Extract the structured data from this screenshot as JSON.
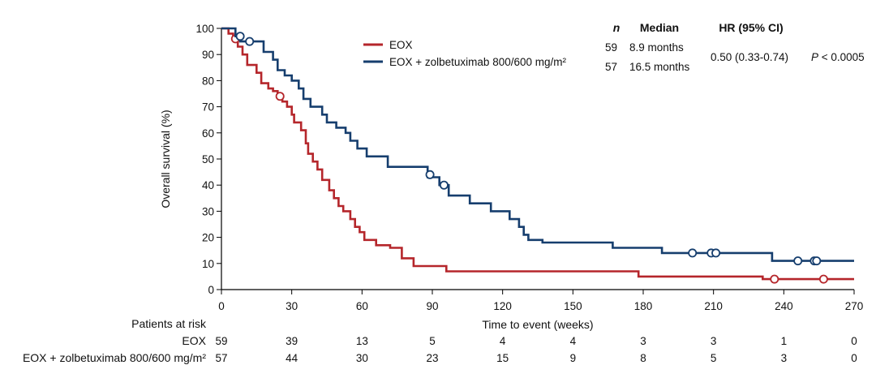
{
  "chart_data": {
    "type": "line",
    "ylabel": "Overall survival (%)",
    "xlabel": "Time to event (weeks)",
    "xlim": [
      0,
      270
    ],
    "ylim": [
      0,
      100
    ],
    "xticks": [
      0,
      30,
      60,
      90,
      120,
      150,
      180,
      210,
      240,
      270
    ],
    "yticks": [
      0,
      10,
      20,
      30,
      40,
      50,
      60,
      70,
      80,
      90,
      100
    ],
    "grid": false,
    "legend_position": "top-center",
    "series": [
      {
        "name": "EOX",
        "color": "#b5262b",
        "steps": [
          [
            0,
            100
          ],
          [
            3,
            98
          ],
          [
            5,
            96
          ],
          [
            7,
            93
          ],
          [
            9,
            90
          ],
          [
            11,
            86
          ],
          [
            15,
            83
          ],
          [
            17,
            79
          ],
          [
            20,
            77
          ],
          [
            22,
            76
          ],
          [
            24,
            74
          ],
          [
            26,
            72
          ],
          [
            28,
            70
          ],
          [
            30,
            67
          ],
          [
            31,
            64
          ],
          [
            34,
            61
          ],
          [
            36,
            56
          ],
          [
            37,
            52
          ],
          [
            39,
            49
          ],
          [
            41,
            46
          ],
          [
            43,
            42
          ],
          [
            46,
            38
          ],
          [
            48,
            35
          ],
          [
            50,
            32
          ],
          [
            52,
            30
          ],
          [
            55,
            27
          ],
          [
            57,
            24
          ],
          [
            59,
            22
          ],
          [
            61,
            19
          ],
          [
            66,
            17
          ],
          [
            72,
            16
          ],
          [
            77,
            12
          ],
          [
            82,
            9
          ],
          [
            96,
            7
          ],
          [
            178,
            5
          ],
          [
            231,
            4
          ],
          [
            270,
            4
          ]
        ],
        "censored": [
          [
            6,
            96
          ],
          [
            25,
            74
          ],
          [
            236,
            4
          ],
          [
            257,
            4
          ]
        ]
      },
      {
        "name": "EOX + zolbetuximab 800/600 mg/m²",
        "color": "#163e6e",
        "steps": [
          [
            0,
            100
          ],
          [
            6,
            97
          ],
          [
            8,
            95
          ],
          [
            18,
            91
          ],
          [
            22,
            88
          ],
          [
            24,
            84
          ],
          [
            27,
            82
          ],
          [
            30,
            80
          ],
          [
            33,
            77
          ],
          [
            35,
            73
          ],
          [
            38,
            70
          ],
          [
            43,
            67
          ],
          [
            45,
            64
          ],
          [
            49,
            62
          ],
          [
            53,
            60
          ],
          [
            55,
            57
          ],
          [
            58,
            54
          ],
          [
            62,
            51
          ],
          [
            64,
            51
          ],
          [
            71,
            47
          ],
          [
            84,
            47
          ],
          [
            88,
            43
          ],
          [
            93,
            40
          ],
          [
            97,
            36
          ],
          [
            106,
            33
          ],
          [
            115,
            30
          ],
          [
            123,
            27
          ],
          [
            127,
            24
          ],
          [
            129,
            21
          ],
          [
            131,
            19
          ],
          [
            137,
            18
          ],
          [
            167,
            16
          ],
          [
            188,
            14
          ],
          [
            235,
            11
          ],
          [
            270,
            11
          ]
        ],
        "censored": [
          [
            8,
            97
          ],
          [
            12,
            95
          ],
          [
            89,
            44
          ],
          [
            95,
            40
          ],
          [
            201,
            14
          ],
          [
            209,
            14
          ],
          [
            211,
            14
          ],
          [
            246,
            11
          ],
          [
            253,
            11
          ],
          [
            254,
            11
          ]
        ]
      }
    ],
    "stats_table": {
      "headers": [
        "n",
        "Median",
        "HR (95% CI)"
      ],
      "rows": [
        {
          "n": "59",
          "median": "8.9 months"
        },
        {
          "n": "57",
          "median": "16.5 months"
        }
      ],
      "hr": "0.50 (0.33-0.74)",
      "p_prefix": "P",
      "p_rest": " < 0.0005"
    },
    "risk_table": {
      "title": "Patients at risk",
      "rows": [
        {
          "label": "EOX",
          "values": [
            59,
            39,
            13,
            5,
            4,
            4,
            3,
            3,
            1,
            0
          ]
        },
        {
          "label": "EOX + zolbetuximab 800/600 mg/m²",
          "values": [
            57,
            44,
            30,
            23,
            15,
            9,
            8,
            5,
            3,
            0
          ]
        }
      ]
    }
  }
}
